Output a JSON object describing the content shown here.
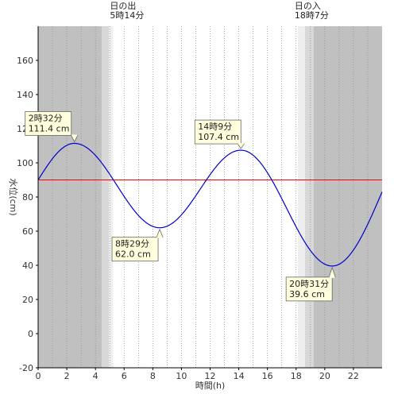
{
  "chart_data": {
    "type": "line",
    "title": "",
    "xlabel": "時間(h)",
    "ylabel": "水位(cm)",
    "xlim": [
      0,
      24
    ],
    "ylim": [
      -20,
      180
    ],
    "xticks": [
      0,
      2,
      4,
      6,
      8,
      10,
      12,
      14,
      16,
      18,
      20,
      22
    ],
    "yticks": [
      -20,
      0,
      20,
      40,
      60,
      80,
      100,
      120,
      140,
      160
    ],
    "grid": "vertical-dotted",
    "reference_line": {
      "y": 90,
      "color": "#ff0000"
    },
    "sun": {
      "sunrise_label": "日の出",
      "sunrise_time": "5時14分",
      "sunrise_hour": 5.233,
      "sunset_label": "日の入",
      "sunset_time": "18時7分",
      "sunset_hour": 18.117,
      "night_color": "#c0c0c0",
      "twilight_color": "#d8d8d8",
      "dawn_color": "#eeeeee"
    },
    "extrema": [
      {
        "time_label": "2時32分",
        "value_label": "111.4 cm",
        "hour": 2.533,
        "value": 111.4
      },
      {
        "time_label": "8時29分",
        "value_label": "62.0 cm",
        "hour": 8.483,
        "value": 62.0
      },
      {
        "time_label": "14時9分",
        "value_label": "107.4 cm",
        "hour": 14.15,
        "value": 107.4
      },
      {
        "time_label": "20時31分",
        "value_label": "39.6 cm",
        "hour": 20.517,
        "value": 39.6
      }
    ],
    "series": [
      {
        "color": "#0000cc",
        "x": [
          0,
          2.533,
          8.483,
          14.15,
          20.517,
          24
        ],
        "y": [
          90,
          111.4,
          62.0,
          107.4,
          39.6,
          83
        ]
      }
    ]
  }
}
